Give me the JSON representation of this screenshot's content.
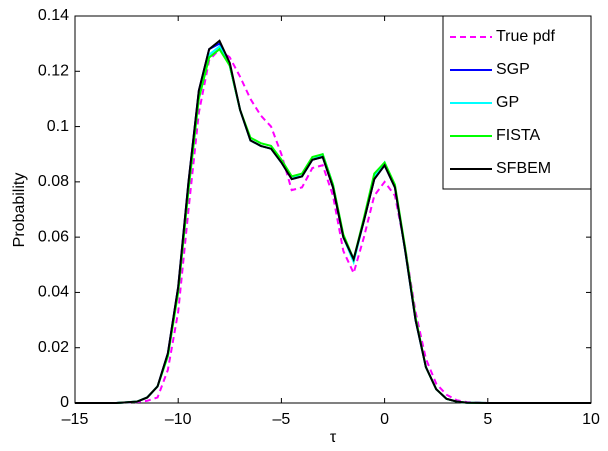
{
  "chart_data": {
    "type": "line",
    "xlabel": "τ",
    "ylabel": "Probability",
    "x": [
      -15,
      -13,
      -12,
      -11.5,
      -11,
      -10.5,
      -10,
      -9.5,
      -9,
      -8.5,
      -8,
      -7.5,
      -7,
      -6.5,
      -6,
      -5.5,
      -5,
      -4.5,
      -4,
      -3.5,
      -3,
      -2.5,
      -2,
      -1.5,
      -1,
      -0.5,
      0,
      0.5,
      1,
      1.5,
      2,
      2.5,
      3,
      3.5,
      4,
      5,
      7,
      10
    ],
    "series": [
      {
        "name": "True pdf",
        "color": "#ff00ff",
        "dashed": true,
        "values": [
          0,
          0,
          0.0003,
          0.0008,
          0.002,
          0.012,
          0.033,
          0.07,
          0.105,
          0.124,
          0.128,
          0.125,
          0.118,
          0.11,
          0.104,
          0.1,
          0.09,
          0.077,
          0.078,
          0.085,
          0.086,
          0.075,
          0.055,
          0.047,
          0.06,
          0.075,
          0.08,
          0.075,
          0.056,
          0.033,
          0.016,
          0.007,
          0.003,
          0.001,
          0.0003,
          0,
          0,
          0
        ]
      },
      {
        "name": "SGP",
        "color": "#0000ff",
        "values": [
          0,
          0,
          0.0005,
          0.002,
          0.006,
          0.018,
          0.042,
          0.08,
          0.113,
          0.128,
          0.13,
          0.122,
          0.106,
          0.095,
          0.093,
          0.092,
          0.087,
          0.081,
          0.082,
          0.088,
          0.089,
          0.078,
          0.06,
          0.052,
          0.066,
          0.081,
          0.086,
          0.078,
          0.055,
          0.03,
          0.013,
          0.005,
          0.0015,
          0.0005,
          0.0001,
          0,
          0,
          0
        ]
      },
      {
        "name": "GP",
        "color": "#00ffff",
        "values": [
          0,
          0,
          0.0005,
          0.002,
          0.006,
          0.017,
          0.041,
          0.078,
          0.111,
          0.126,
          0.129,
          0.122,
          0.106,
          0.095,
          0.093,
          0.092,
          0.087,
          0.082,
          0.082,
          0.088,
          0.09,
          0.079,
          0.06,
          0.051,
          0.066,
          0.082,
          0.087,
          0.078,
          0.055,
          0.03,
          0.013,
          0.005,
          0.0015,
          0.0005,
          0.0001,
          0,
          0,
          0
        ]
      },
      {
        "name": "FISTA",
        "color": "#00ff00",
        "values": [
          0,
          0,
          0.0005,
          0.002,
          0.006,
          0.017,
          0.04,
          0.077,
          0.11,
          0.125,
          0.128,
          0.122,
          0.106,
          0.096,
          0.094,
          0.093,
          0.088,
          0.082,
          0.083,
          0.089,
          0.09,
          0.079,
          0.061,
          0.052,
          0.067,
          0.083,
          0.087,
          0.079,
          0.056,
          0.031,
          0.013,
          0.005,
          0.0015,
          0.0005,
          0.0001,
          0,
          0,
          0
        ]
      },
      {
        "name": "SFBEM",
        "color": "#000000",
        "values": [
          0,
          0,
          0.0005,
          0.002,
          0.006,
          0.018,
          0.042,
          0.08,
          0.113,
          0.128,
          0.131,
          0.123,
          0.106,
          0.095,
          0.093,
          0.092,
          0.087,
          0.081,
          0.082,
          0.088,
          0.089,
          0.078,
          0.06,
          0.052,
          0.066,
          0.081,
          0.086,
          0.078,
          0.055,
          0.03,
          0.013,
          0.005,
          0.0015,
          0.0005,
          0.0001,
          0,
          0,
          0
        ]
      }
    ],
    "xlim": [
      -15,
      10
    ],
    "xticks": [
      {
        "value": -15,
        "label": "–15"
      },
      {
        "value": -10,
        "label": "–10"
      },
      {
        "value": -5,
        "label": "–5"
      },
      0,
      5,
      10
    ],
    "ylim": [
      0,
      0.14
    ],
    "yticks": [
      0,
      0.02,
      0.04,
      0.06,
      0.08,
      0.1,
      0.12,
      0.14
    ],
    "legend": "upper right"
  }
}
